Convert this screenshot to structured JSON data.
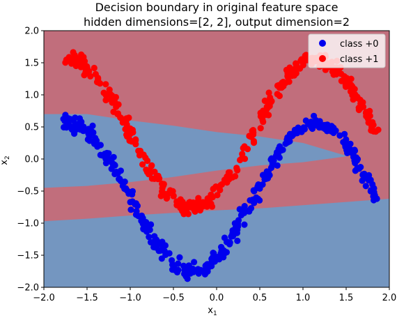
{
  "chart_data": {
    "type": "scatter",
    "title_line1": "Decision boundary in original feature space",
    "title_line2": "hidden dimensions=[2, 2], output dimension=2",
    "xlabel": "x",
    "xlabel_sub": "1",
    "ylabel": "x",
    "ylabel_sub": "2",
    "xlim": [
      -2.0,
      2.0
    ],
    "ylim": [
      -2.0,
      2.0
    ],
    "xticks": [
      -2.0,
      -1.5,
      -1.0,
      -0.5,
      0.0,
      0.5,
      1.0,
      1.5,
      2.0
    ],
    "xtick_labels": [
      "−2.0",
      "−1.5",
      "−1.0",
      "−0.5",
      "0.0",
      "0.5",
      "1.0",
      "1.5",
      "2.0"
    ],
    "yticks": [
      -2.0,
      -1.5,
      -1.0,
      -0.5,
      0.0,
      0.5,
      1.0,
      1.5,
      2.0
    ],
    "ytick_labels": [
      "−2.0",
      "−1.5",
      "−1.0",
      "−0.5",
      "0.0",
      "0.5",
      "1.0",
      "1.5",
      "2.0"
    ],
    "legend_position": "top-right",
    "grid": false,
    "regions": {
      "class0_color": "#7496c0",
      "class1_color": "#c16e7c",
      "background_class": 1,
      "class0_bands": [
        {
          "top": [
            [
              -2.0,
              0.7
            ],
            [
              -1.5,
              0.7
            ],
            [
              -1.0,
              0.6
            ],
            [
              -0.5,
              0.52
            ],
            [
              0.0,
              0.42
            ],
            [
              0.5,
              0.35
            ],
            [
              1.0,
              0.25
            ],
            [
              1.5,
              0.05
            ]
          ],
          "bottom": [
            [
              -2.0,
              -0.45
            ],
            [
              -1.5,
              -0.42
            ],
            [
              -1.0,
              -0.36
            ],
            [
              -0.5,
              -0.28
            ],
            [
              0.0,
              -0.18
            ],
            [
              0.5,
              -0.1
            ],
            [
              1.0,
              -0.05
            ],
            [
              1.5,
              0.04
            ]
          ]
        },
        {
          "top": [
            [
              -2.0,
              -0.97
            ],
            [
              -1.5,
              -0.93
            ],
            [
              -1.0,
              -0.88
            ],
            [
              -0.5,
              -0.84
            ],
            [
              0.0,
              -0.8
            ],
            [
              0.5,
              -0.77
            ],
            [
              1.0,
              -0.72
            ],
            [
              1.5,
              -0.67
            ],
            [
              2.0,
              -0.62
            ]
          ],
          "bottom": [
            [
              -2.0,
              -2.0
            ],
            [
              2.0,
              -2.0
            ]
          ]
        }
      ]
    },
    "series": [
      {
        "name": "class +0",
        "color": "#0000ee",
        "generator": "sine",
        "x_range": [
          -1.75,
          1.85
        ],
        "x_offset": -1.0,
        "amplitude": -1.15,
        "frequency": 2.2,
        "y_offset": -0.6,
        "noise": 0.11,
        "count": 380
      },
      {
        "name": "class +1",
        "color": "#ff0000",
        "generator": "sine",
        "x_range": [
          -1.75,
          1.85
        ],
        "x_offset": -1.0,
        "amplitude": -1.15,
        "frequency": 2.2,
        "y_offset": 0.4,
        "noise": 0.11,
        "count": 380
      }
    ],
    "legend": [
      {
        "label": "class +0",
        "color": "#0000ee"
      },
      {
        "label": "class +1",
        "color": "#ff0000"
      }
    ]
  }
}
